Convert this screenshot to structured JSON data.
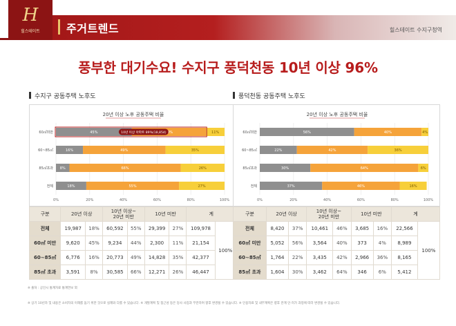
{
  "header": {
    "logo_mark": "H",
    "logo_text": "힐스테이트",
    "title": "주거트렌드",
    "brand": "힐스테이트 수지구청역"
  },
  "headline": "풍부한 대기수요! 수지구 풍덕천동 10년 이상 96%",
  "colors": {
    "gray": "#8f8f8f",
    "orange": "#f5a33a",
    "yellow": "#f7cf3a",
    "brand_red": "#8c1414"
  },
  "panels": [
    {
      "title": "수지구 공동주택 노후도",
      "chart_title": "20년 이상 노후 공동주택 비율",
      "callout": "10년 이상 아파트 89%(18,854)",
      "table": {
        "headers": [
          "구분",
          "20년 이상",
          "10년 이상~\n20년 미만",
          "10년 미만",
          "계"
        ],
        "total_pct": "100%",
        "rows": [
          {
            "label": "전체",
            "c1": "19,987",
            "p1": "18%",
            "c2": "60,592",
            "p2": "55%",
            "c3": "29,399",
            "p3": "27%",
            "total": "109,978"
          },
          {
            "label": "60㎡ 미만",
            "c1": "9,620",
            "p1": "45%",
            "c2": "9,234",
            "p2": "44%",
            "c3": "2,300",
            "p3": "11%",
            "total": "21,154"
          },
          {
            "label": "60~85㎡",
            "c1": "6,776",
            "p1": "16%",
            "c2": "20,773",
            "p2": "49%",
            "c3": "14,828",
            "p3": "35%",
            "total": "42,377"
          },
          {
            "label": "85㎡ 초과",
            "c1": "3,591",
            "p1": "8%",
            "c2": "30,585",
            "p2": "66%",
            "c3": "12,271",
            "p3": "26%",
            "total": "46,447"
          }
        ]
      }
    },
    {
      "title": "풍덕천동 공동주택 노후도",
      "chart_title": "20년 이상 노후 공동주택 비율",
      "callout": "",
      "table": {
        "headers": [
          "구분",
          "20년 이상",
          "10년 이상~\n20년 미만",
          "10년 미만",
          "계"
        ],
        "total_pct": "100%",
        "rows": [
          {
            "label": "전체",
            "c1": "8,420",
            "p1": "37%",
            "c2": "10,461",
            "p2": "46%",
            "c3": "3,685",
            "p3": "16%",
            "total": "22,566"
          },
          {
            "label": "60㎡ 미만",
            "c1": "5,052",
            "p1": "56%",
            "c2": "3,564",
            "p2": "40%",
            "c3": "373",
            "p3": "4%",
            "total": "8,989"
          },
          {
            "label": "60~85㎡",
            "c1": "1,764",
            "p1": "22%",
            "c2": "3,435",
            "p2": "42%",
            "c3": "2,966",
            "p3": "36%",
            "total": "8,165"
          },
          {
            "label": "85㎡ 초과",
            "c1": "1,604",
            "p1": "30%",
            "c2": "3,462",
            "p2": "64%",
            "c3": "346",
            "p3": "6%",
            "total": "5,412"
          }
        ]
      }
    }
  ],
  "chart_data": [
    {
      "type": "bar",
      "orientation": "horizontal",
      "stacked": true,
      "title": "20년 이상 노후 공동주택 비율",
      "categories": [
        "60㎡미만",
        "60~85㎡",
        "85㎡초과",
        "전체"
      ],
      "series": [
        {
          "name": "20년 이상",
          "color": "#8f8f8f",
          "values": [
            45,
            16,
            8,
            18
          ],
          "labels": [
            "45%",
            "16%",
            "8%",
            "18%"
          ]
        },
        {
          "name": "10년 이상~20년 미만",
          "color": "#f5a33a",
          "values": [
            44,
            49,
            66,
            55
          ],
          "labels": [
            "44%",
            "49%",
            "66%",
            "55%"
          ]
        },
        {
          "name": "10년 미만",
          "color": "#f7cf3a",
          "values": [
            11,
            35,
            26,
            27
          ],
          "labels": [
            "11%",
            "35%",
            "26%",
            "27%"
          ]
        }
      ],
      "xticks": [
        "0%",
        "20%",
        "40%",
        "60%",
        "80%",
        "100%"
      ],
      "xlim": [
        0,
        100
      ]
    },
    {
      "type": "bar",
      "orientation": "horizontal",
      "stacked": true,
      "title": "20년 이상 노후 공동주택 비율",
      "categories": [
        "60㎡미만",
        "60~85㎡",
        "85㎡초과",
        "전체"
      ],
      "series": [
        {
          "name": "20년 이상",
          "color": "#8f8f8f",
          "values": [
            56,
            22,
            30,
            37
          ],
          "labels": [
            "56%",
            "22%",
            "30%",
            "37%"
          ]
        },
        {
          "name": "10년 이상~20년 미만",
          "color": "#f5a33a",
          "values": [
            40,
            42,
            64,
            46
          ],
          "labels": [
            "40%",
            "42%",
            "64%",
            "46%"
          ]
        },
        {
          "name": "10년 미만",
          "color": "#f7cf3a",
          "values": [
            4,
            36,
            6,
            16
          ],
          "labels": [
            "4%",
            "36%",
            "6%",
            "16%"
          ]
        }
      ],
      "xticks": [
        "0%",
        "20%",
        "40%",
        "60%",
        "80%",
        "100%"
      ],
      "xlim": [
        0,
        100
      ]
    }
  ],
  "source": "※ 출처 : 공인시 통계자료 통계연보 외",
  "footnote": "※ 상기 10년차 및 내용은 소비자의 이해를 돕기 위한 것으로 실제와 다를 수 있습니다. ※ 개발계획 및 접근성 등은 당사 사업과 무관하며 향후 변경될 수 있습니다. ※ 인용자료 및 내부계획은 향후 관계 인·허가 과정에 따라 변경될 수 있습니다."
}
